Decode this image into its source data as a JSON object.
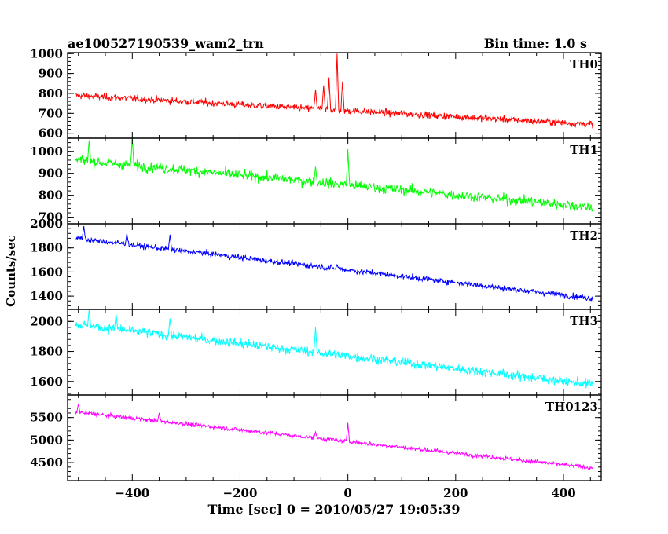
{
  "chart_data": {
    "type": "line",
    "title": "ae100527190539_wam2_trn",
    "bin_time_label": "Bin time: 1.0 s",
    "xlabel": "Time [sec] 0 = 2010/05/27 19:05:39",
    "ylabel": "Counts/sec",
    "xlim": [
      -520,
      470
    ],
    "xticks": [
      -400,
      -200,
      0,
      200,
      400
    ],
    "x_range": [
      -505,
      455
    ],
    "grid": false,
    "panels": [
      {
        "name": "TH0",
        "color": "#ff0000",
        "ylim": [
          575,
          1005
        ],
        "yticks": [
          600,
          700,
          800,
          900,
          1000
        ],
        "trend_start": 790,
        "trend_end": 645,
        "noise": 22,
        "spikes": [
          [
            -20,
            1000
          ],
          [
            -35,
            880
          ],
          [
            -10,
            860
          ],
          [
            -45,
            840
          ],
          [
            -60,
            820
          ]
        ]
      },
      {
        "name": "TH1",
        "color": "#00ff00",
        "ylim": [
          670,
          1060
        ],
        "yticks": [
          700,
          800,
          900,
          1000
        ],
        "trend_start": 960,
        "trend_end": 745,
        "noise": 30,
        "spikes": [
          [
            0,
            1010
          ],
          [
            -400,
            1060
          ],
          [
            -480,
            1050
          ],
          [
            -60,
            930
          ]
        ]
      },
      {
        "name": "TH2",
        "color": "#0000ff",
        "ylim": [
          1290,
          2000
        ],
        "yticks": [
          1400,
          1600,
          1800,
          2000
        ],
        "trend_start": 1880,
        "trend_end": 1380,
        "noise": 30,
        "spikes": [
          [
            -490,
            1980
          ],
          [
            -410,
            1920
          ],
          [
            -330,
            1910
          ],
          [
            -20,
            1660
          ]
        ]
      },
      {
        "name": "TH3",
        "color": "#00ffff",
        "ylim": [
          1510,
          2080
        ],
        "yticks": [
          1600,
          1800,
          2000
        ],
        "trend_start": 1980,
        "trend_end": 1580,
        "noise": 40,
        "spikes": [
          [
            -480,
            2080
          ],
          [
            -430,
            2050
          ],
          [
            -330,
            2020
          ],
          [
            -60,
            1960
          ]
        ]
      },
      {
        "name": "TH0123",
        "color": "#ff00ff",
        "ylim": [
          4100,
          6000
        ],
        "yticks": [
          4500,
          5000,
          5500
        ],
        "trend_start": 5620,
        "trend_end": 4380,
        "noise": 60,
        "spikes": [
          [
            0,
            5380
          ],
          [
            -500,
            5800
          ],
          [
            -350,
            5600
          ],
          [
            -60,
            5180
          ]
        ]
      }
    ]
  }
}
